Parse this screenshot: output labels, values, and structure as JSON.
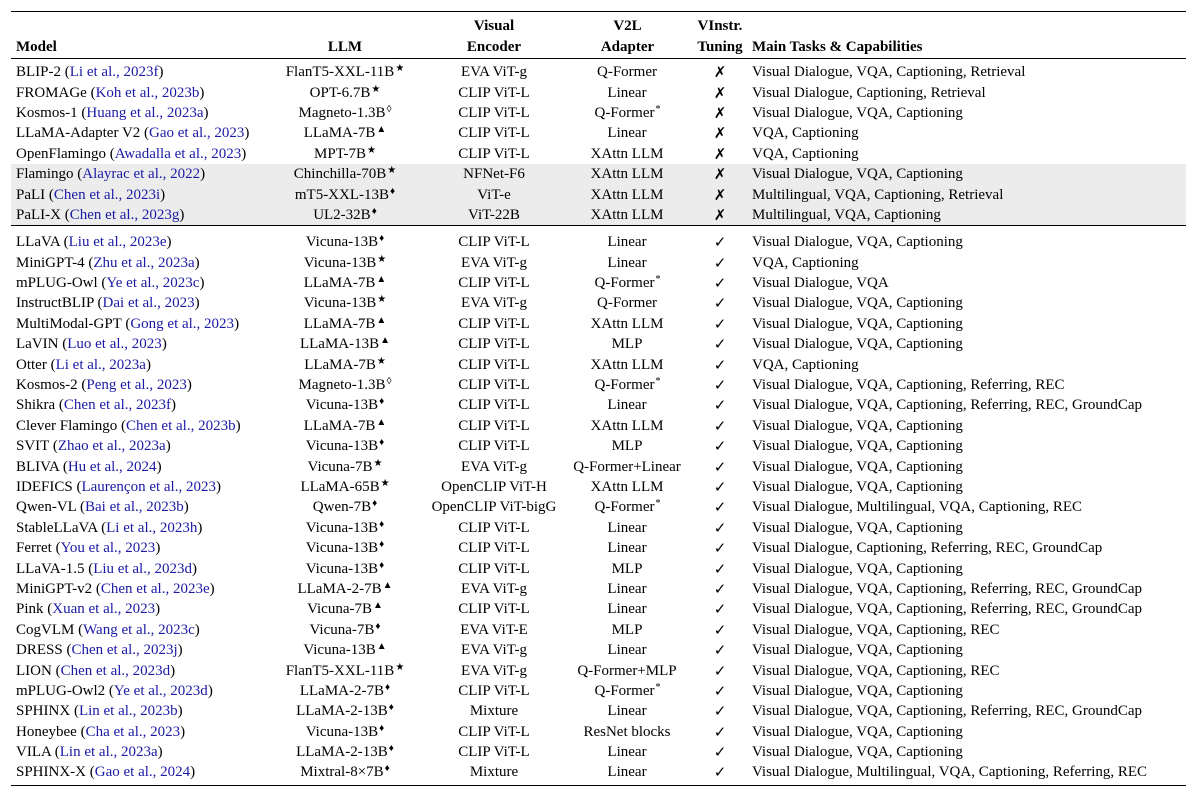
{
  "header": {
    "model": "Model",
    "llm": "LLM",
    "visual_encoder": [
      "Visual",
      "Encoder"
    ],
    "v2l_adapter": [
      "V2L",
      "Adapter"
    ],
    "vinstr_tuning": [
      "VInstr.",
      "Tuning"
    ],
    "tasks": "Main Tasks & Capabilities"
  },
  "groups": [
    {
      "shaded": false,
      "rows": [
        [
          "BLIP-2",
          "Li et al., 2023f",
          "FlanT5-XXL-11B",
          "★",
          "EVA ViT-g",
          "Q-Former",
          "",
          "✗",
          "Visual Dialogue, VQA, Captioning, Retrieval"
        ],
        [
          "FROMAGe",
          "Koh et al., 2023b",
          "OPT-6.7B",
          "★",
          "CLIP ViT-L",
          "Linear",
          "",
          "✗",
          "Visual Dialogue, Captioning, Retrieval"
        ],
        [
          "Kosmos-1",
          "Huang et al., 2023a",
          "Magneto-1.3B",
          "◊",
          "CLIP ViT-L",
          "Q-Former",
          "*",
          "✗",
          "Visual Dialogue, VQA, Captioning"
        ],
        [
          "LLaMA-Adapter V2",
          "Gao et al., 2023",
          "LLaMA-7B",
          "▲",
          "CLIP ViT-L",
          "Linear",
          "",
          "✗",
          "VQA, Captioning"
        ],
        [
          "OpenFlamingo",
          "Awadalla et al., 2023",
          "MPT-7B",
          "★",
          "CLIP ViT-L",
          "XAttn LLM",
          "",
          "✗",
          "VQA, Captioning"
        ]
      ]
    },
    {
      "shaded": true,
      "rows": [
        [
          "Flamingo",
          "Alayrac et al., 2022",
          "Chinchilla-70B",
          "★",
          "NFNet-F6",
          "XAttn LLM",
          "",
          "✗",
          "Visual Dialogue, VQA, Captioning"
        ],
        [
          "PaLI",
          "Chen et al., 2023i",
          "mT5-XXL-13B",
          "♦",
          "ViT-e",
          "XAttn LLM",
          "",
          "✗",
          "Multilingual, VQA, Captioning, Retrieval"
        ],
        [
          "PaLI-X",
          "Chen et al., 2023g",
          "UL2-32B",
          "♦",
          "ViT-22B",
          "XAttn LLM",
          "",
          "✗",
          "Multilingual, VQA, Captioning"
        ]
      ]
    },
    {
      "shaded": false,
      "rows": [
        [
          "LLaVA",
          "Liu et al., 2023e",
          "Vicuna-13B",
          "♦",
          "CLIP ViT-L",
          "Linear",
          "",
          "✓",
          "Visual Dialogue, VQA, Captioning"
        ],
        [
          "MiniGPT-4",
          "Zhu et al., 2023a",
          "Vicuna-13B",
          "★",
          "EVA ViT-g",
          "Linear",
          "",
          "✓",
          "VQA, Captioning"
        ],
        [
          "mPLUG-Owl",
          "Ye et al., 2023c",
          "LLaMA-7B",
          "▲",
          "CLIP ViT-L",
          "Q-Former",
          "*",
          "✓",
          "Visual Dialogue, VQA"
        ],
        [
          "InstructBLIP",
          "Dai et al., 2023",
          "Vicuna-13B",
          "★",
          "EVA ViT-g",
          "Q-Former",
          "",
          "✓",
          "Visual Dialogue, VQA, Captioning"
        ],
        [
          "MultiModal-GPT",
          "Gong et al., 2023",
          "LLaMA-7B",
          "▲",
          "CLIP ViT-L",
          "XAttn LLM",
          "",
          "✓",
          "Visual Dialogue, VQA, Captioning"
        ],
        [
          "LaVIN",
          "Luo et al., 2023",
          "LLaMA-13B",
          "▲",
          "CLIP ViT-L",
          "MLP",
          "",
          "✓",
          "Visual Dialogue, VQA, Captioning"
        ],
        [
          "Otter",
          "Li et al., 2023a",
          "LLaMA-7B",
          "★",
          "CLIP ViT-L",
          "XAttn LLM",
          "",
          "✓",
          "VQA, Captioning"
        ],
        [
          "Kosmos-2",
          "Peng et al., 2023",
          "Magneto-1.3B",
          "◊",
          "CLIP ViT-L",
          "Q-Former",
          "*",
          "✓",
          "Visual Dialogue, VQA, Captioning, Referring, REC"
        ],
        [
          "Shikra",
          "Chen et al., 2023f",
          "Vicuna-13B",
          "♦",
          "CLIP ViT-L",
          "Linear",
          "",
          "✓",
          "Visual Dialogue, VQA, Captioning, Referring, REC, GroundCap"
        ],
        [
          "Clever Flamingo",
          "Chen et al., 2023b",
          "LLaMA-7B",
          "▲",
          "CLIP ViT-L",
          "XAttn LLM",
          "",
          "✓",
          "Visual Dialogue, VQA, Captioning"
        ],
        [
          "SVIT",
          "Zhao et al., 2023a",
          "Vicuna-13B",
          "♦",
          "CLIP ViT-L",
          "MLP",
          "",
          "✓",
          "Visual Dialogue, VQA, Captioning"
        ],
        [
          "BLIVA",
          "Hu et al., 2024",
          "Vicuna-7B",
          "★",
          "EVA ViT-g",
          "Q-Former+Linear",
          "",
          "✓",
          "Visual Dialogue, VQA, Captioning"
        ],
        [
          "IDEFICS",
          "Laurençon et al., 2023",
          "LLaMA-65B",
          "★",
          "OpenCLIP ViT-H",
          "XAttn LLM",
          "",
          "✓",
          "Visual Dialogue, VQA, Captioning"
        ],
        [
          "Qwen-VL",
          "Bai et al., 2023b",
          "Qwen-7B",
          "♦",
          "OpenCLIP ViT-bigG",
          "Q-Former",
          "*",
          "✓",
          "Visual Dialogue, Multilingual, VQA, Captioning, REC"
        ],
        [
          "StableLLaVA",
          "Li et al., 2023h",
          "Vicuna-13B",
          "♦",
          "CLIP ViT-L",
          "Linear",
          "",
          "✓",
          "Visual Dialogue, VQA, Captioning"
        ],
        [
          "Ferret",
          "You et al., 2023",
          "Vicuna-13B",
          "♦",
          "CLIP ViT-L",
          "Linear",
          "",
          "✓",
          "Visual Dialogue, Captioning, Referring, REC, GroundCap"
        ],
        [
          "LLaVA-1.5",
          "Liu et al., 2023d",
          "Vicuna-13B",
          "♦",
          "CLIP ViT-L",
          "MLP",
          "",
          "✓",
          "Visual Dialogue, VQA, Captioning"
        ],
        [
          "MiniGPT-v2",
          "Chen et al., 2023e",
          "LLaMA-2-7B",
          "▲",
          "EVA ViT-g",
          "Linear",
          "",
          "✓",
          "Visual Dialogue, VQA, Captioning, Referring, REC, GroundCap"
        ],
        [
          "Pink",
          "Xuan et al., 2023",
          "Vicuna-7B",
          "▲",
          "CLIP ViT-L",
          "Linear",
          "",
          "✓",
          "Visual Dialogue, VQA, Captioning, Referring, REC, GroundCap"
        ],
        [
          "CogVLM",
          "Wang et al., 2023c",
          "Vicuna-7B",
          "♦",
          "EVA ViT-E",
          "MLP",
          "",
          "✓",
          "Visual Dialogue, VQA, Captioning, REC"
        ],
        [
          "DRESS",
          "Chen et al., 2023j",
          "Vicuna-13B",
          "▲",
          "EVA ViT-g",
          "Linear",
          "",
          "✓",
          "Visual Dialogue, VQA, Captioning"
        ],
        [
          "LION",
          "Chen et al., 2023d",
          "FlanT5-XXL-11B",
          "★",
          "EVA ViT-g",
          "Q-Former+MLP",
          "",
          "✓",
          "Visual Dialogue, VQA, Captioning, REC"
        ],
        [
          "mPLUG-Owl2",
          "Ye et al., 2023d",
          "LLaMA-2-7B",
          "♦",
          "CLIP ViT-L",
          "Q-Former",
          "*",
          "✓",
          "Visual Dialogue, VQA, Captioning"
        ],
        [
          "SPHINX",
          "Lin et al., 2023b",
          "LLaMA-2-13B",
          "♦",
          "Mixture",
          "Linear",
          "",
          "✓",
          "Visual Dialogue, VQA, Captioning, Referring, REC, GroundCap"
        ],
        [
          "Honeybee",
          "Cha et al., 2023",
          "Vicuna-13B",
          "♦",
          "CLIP ViT-L",
          "ResNet blocks",
          "",
          "✓",
          "Visual Dialogue, VQA, Captioning"
        ],
        [
          "VILA",
          "Lin et al., 2023a",
          "LLaMA-2-13B",
          "♦",
          "CLIP ViT-L",
          "Linear",
          "",
          "✓",
          "Visual Dialogue, VQA, Captioning"
        ],
        [
          "SPHINX-X",
          "Gao et al., 2024",
          "Mixtral-8×7B",
          "♦",
          "Mixture",
          "Linear",
          "",
          "✓",
          "Visual Dialogue, Multilingual, VQA, Captioning, Referring, REC"
        ]
      ]
    }
  ]
}
